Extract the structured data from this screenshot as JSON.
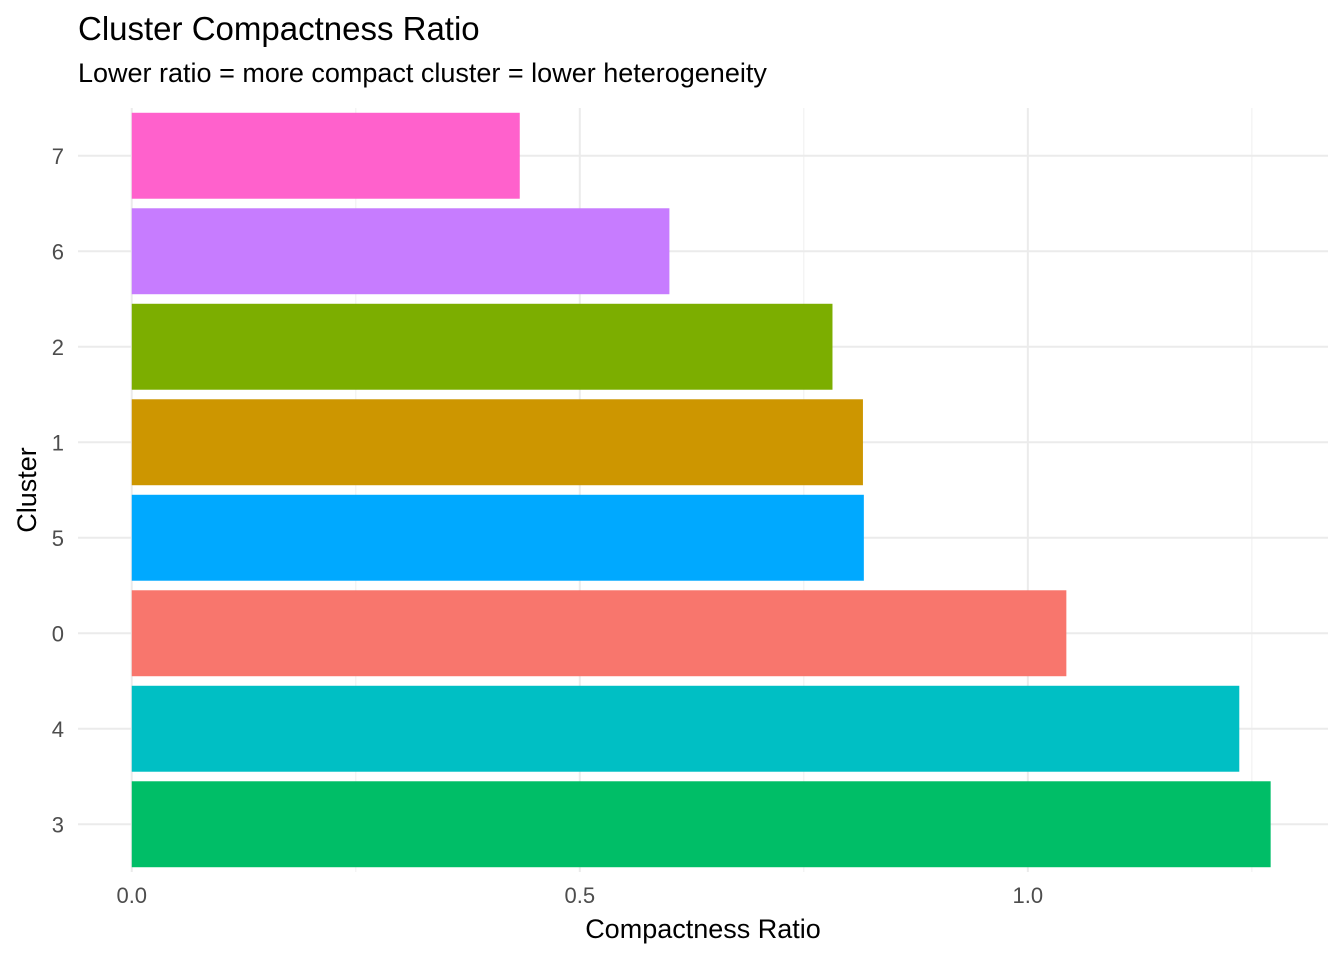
{
  "chart_data": {
    "type": "bar",
    "orientation": "horizontal",
    "title": "Cluster Compactness Ratio",
    "subtitle": "Lower ratio = more compact cluster = lower heterogeneity",
    "xlabel": "Compactness Ratio",
    "ylabel": "Cluster",
    "categories": [
      "7",
      "6",
      "2",
      "1",
      "5",
      "0",
      "4",
      "3"
    ],
    "values": [
      0.433,
      0.6,
      0.782,
      0.816,
      0.817,
      1.043,
      1.236,
      1.271
    ],
    "colors": [
      "#FF61CC",
      "#C77CFF",
      "#7CAE00",
      "#CD9600",
      "#00A9FF",
      "#F8766D",
      "#00BFC4",
      "#00BE67"
    ],
    "xlim": [
      -0.06,
      1.335
    ],
    "xticks": [
      0.0,
      0.5,
      1.0
    ],
    "xtick_labels": [
      "0.0",
      "0.5",
      "1.0"
    ],
    "grid": true,
    "legend": "none"
  }
}
